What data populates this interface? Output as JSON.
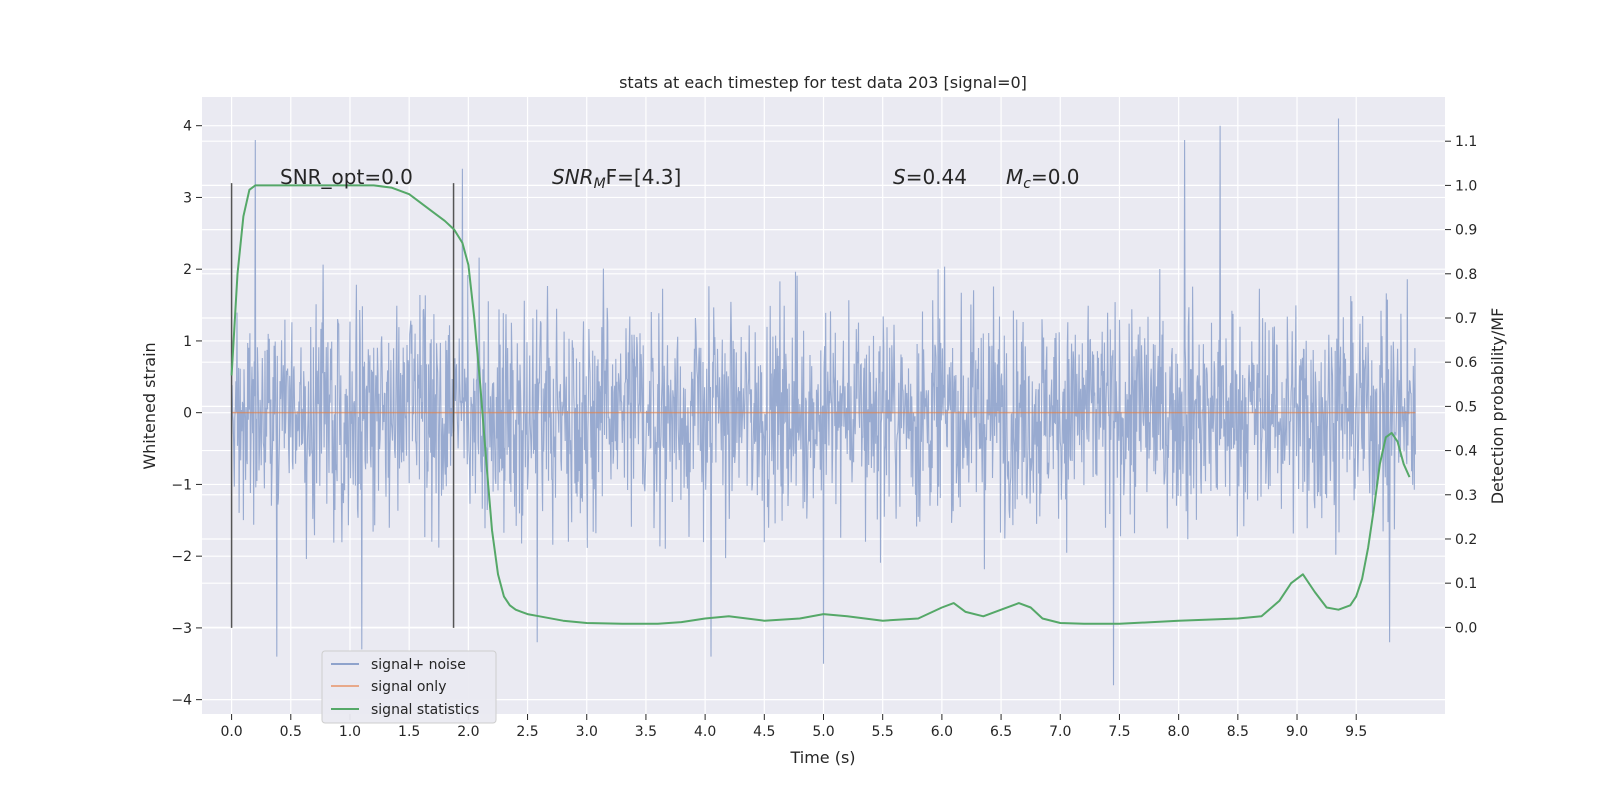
{
  "chart_data": {
    "type": "line",
    "title": "stats at each timestep for test data 203 [signal=0]",
    "xlabel": "Time (s)",
    "ylabel": "Whitened strain",
    "y2label": "Detection probability/MF",
    "xlim": [
      -0.25,
      10.25
    ],
    "ylim": [
      -4.2,
      4.4
    ],
    "y2lim": [
      -0.196,
      1.2
    ],
    "xticks": [
      0.0,
      0.5,
      1.0,
      1.5,
      2.0,
      2.5,
      3.0,
      3.5,
      4.0,
      4.5,
      5.0,
      5.5,
      6.0,
      6.5,
      7.0,
      7.5,
      8.0,
      8.5,
      9.0,
      9.5
    ],
    "xtick_labels": [
      "0.0",
      "0.5",
      "1.0",
      "1.5",
      "2.0",
      "2.5",
      "3.0",
      "3.5",
      "4.0",
      "4.5",
      "5.0",
      "5.5",
      "6.0",
      "6.5",
      "7.0",
      "7.5",
      "8.0",
      "8.5",
      "9.0",
      "9.5"
    ],
    "yticks": [
      -4,
      -3,
      -2,
      -1,
      0,
      1,
      2,
      3,
      4
    ],
    "ytick_labels": [
      "−4",
      "−3",
      "−2",
      "−1",
      "0",
      "1",
      "2",
      "3",
      "4"
    ],
    "y2ticks": [
      0.0,
      0.1,
      0.2,
      0.3,
      0.4,
      0.5,
      0.6,
      0.7,
      0.8,
      0.9,
      1.0,
      1.1
    ],
    "y2tick_labels": [
      "0.0",
      "0.1",
      "0.2",
      "0.3",
      "0.4",
      "0.5",
      "0.6",
      "0.7",
      "0.8",
      "0.9",
      "1.0",
      "1.1"
    ],
    "grid": true,
    "legend_position": "lower-left",
    "annotations": {
      "snr_opt": "SNR_opt=0.0",
      "snr_mf_label": "SNR",
      "snr_mf_sub": "M",
      "snr_mf_value": "F=[4.3]",
      "s_label": "S",
      "s_value": "=0.44",
      "mc_label": "M",
      "mc_sub": "c",
      "mc_value": "=0.0"
    },
    "vlines": [
      {
        "x": 0.0,
        "ymin": -3.0,
        "ymax": 3.2
      },
      {
        "x": 1.875,
        "ymin": -3.0,
        "ymax": 3.2
      }
    ],
    "series": [
      {
        "name": "signal+ noise",
        "color": "#8fa3cc",
        "axis": "left",
        "description_values": "random noise, mostly between -1.5 and 1.5 with spikes up to 4",
        "x_range": [
          0.0,
          10.0
        ],
        "spikes": [
          {
            "x": 0.2,
            "y": 3.8
          },
          {
            "x": 0.38,
            "y": -3.4
          },
          {
            "x": 1.1,
            "y": -3.3
          },
          {
            "x": 1.95,
            "y": 3.4
          },
          {
            "x": 2.58,
            "y": -3.2
          },
          {
            "x": 4.05,
            "y": -3.4
          },
          {
            "x": 5.0,
            "y": -3.5
          },
          {
            "x": 7.45,
            "y": -3.8
          },
          {
            "x": 8.05,
            "y": 3.8
          },
          {
            "x": 8.35,
            "y": 4.0
          },
          {
            "x": 9.35,
            "y": 4.1
          },
          {
            "x": 9.78,
            "y": -3.2
          }
        ]
      },
      {
        "name": "signal only",
        "color": "#dd8452",
        "axis": "left",
        "x": [
          0.0,
          10.0
        ],
        "y": [
          0.0,
          0.0
        ]
      },
      {
        "name": "signal statistics",
        "color": "#55a868",
        "axis": "right",
        "x": [
          0.0,
          0.05,
          0.1,
          0.15,
          0.2,
          0.3,
          0.5,
          0.8,
          1.0,
          1.2,
          1.35,
          1.5,
          1.6,
          1.7,
          1.8,
          1.88,
          1.95,
          2.0,
          2.05,
          2.1,
          2.15,
          2.2,
          2.25,
          2.3,
          2.35,
          2.4,
          2.45,
          2.5,
          2.6,
          2.8,
          3.0,
          3.3,
          3.6,
          3.8,
          4.0,
          4.2,
          4.5,
          4.8,
          5.0,
          5.2,
          5.5,
          5.8,
          6.0,
          6.1,
          6.2,
          6.35,
          6.5,
          6.65,
          6.75,
          6.85,
          7.0,
          7.2,
          7.5,
          8.0,
          8.5,
          8.7,
          8.85,
          8.95,
          9.05,
          9.15,
          9.25,
          9.35,
          9.45,
          9.5,
          9.55,
          9.6,
          9.65,
          9.7,
          9.75,
          9.8,
          9.85,
          9.9,
          9.95
        ],
        "y": [
          0.57,
          0.8,
          0.93,
          0.99,
          1.0,
          1.0,
          1.0,
          1.0,
          1.0,
          1.0,
          0.995,
          0.98,
          0.96,
          0.94,
          0.92,
          0.9,
          0.87,
          0.82,
          0.7,
          0.55,
          0.38,
          0.22,
          0.12,
          0.07,
          0.05,
          0.04,
          0.035,
          0.03,
          0.025,
          0.015,
          0.01,
          0.008,
          0.008,
          0.012,
          0.02,
          0.025,
          0.015,
          0.02,
          0.03,
          0.025,
          0.015,
          0.02,
          0.045,
          0.055,
          0.035,
          0.025,
          0.04,
          0.055,
          0.045,
          0.02,
          0.01,
          0.008,
          0.008,
          0.015,
          0.02,
          0.025,
          0.06,
          0.1,
          0.12,
          0.08,
          0.045,
          0.04,
          0.05,
          0.07,
          0.11,
          0.18,
          0.27,
          0.37,
          0.43,
          0.44,
          0.42,
          0.37,
          0.34
        ]
      }
    ]
  }
}
